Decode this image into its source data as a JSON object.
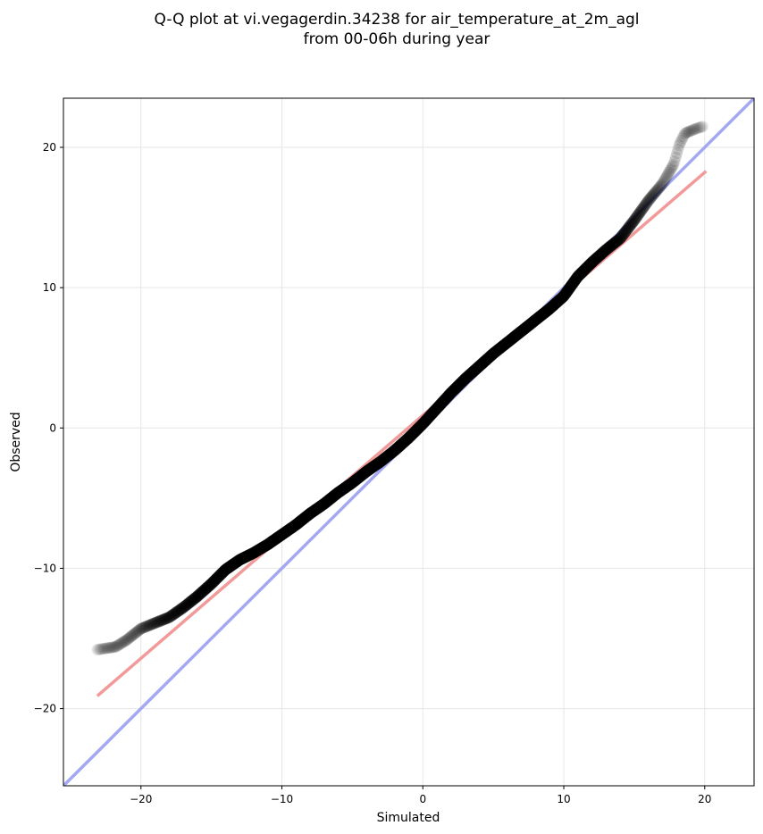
{
  "chart_data": {
    "type": "scatter",
    "title_line1": "Q-Q plot at vi.vegagerdin.34238 for air_temperature_at_2m_agl",
    "title_line2": "from 00-06h during year",
    "xlabel": "Simulated",
    "ylabel": "Observed",
    "xlim": [
      -25.5,
      23.5
    ],
    "ylim": [
      -25.5,
      23.5
    ],
    "xticks": [
      -20,
      -10,
      0,
      10,
      20
    ],
    "yticks": [
      -20,
      -10,
      0,
      10,
      20
    ],
    "xtick_labels": [
      "−20",
      "−10",
      "0",
      "10",
      "20"
    ],
    "ytick_labels": [
      "−20",
      "−10",
      "0",
      "10",
      "20"
    ],
    "grid": true,
    "quantile_curve": [
      [
        -23.1,
        -15.8
      ],
      [
        -21.8,
        -15.6
      ],
      [
        -21.0,
        -15.1
      ],
      [
        -20.0,
        -14.3
      ],
      [
        -19.0,
        -13.9
      ],
      [
        -18.0,
        -13.5
      ],
      [
        -17.0,
        -12.8
      ],
      [
        -16.0,
        -12.0
      ],
      [
        -15.0,
        -11.1
      ],
      [
        -14.0,
        -10.1
      ],
      [
        -13.0,
        -9.4
      ],
      [
        -12.0,
        -8.9
      ],
      [
        -11.0,
        -8.3
      ],
      [
        -10.0,
        -7.6
      ],
      [
        -9.0,
        -6.9
      ],
      [
        -8.0,
        -6.1
      ],
      [
        -7.0,
        -5.4
      ],
      [
        -6.0,
        -4.6
      ],
      [
        -5.0,
        -3.9
      ],
      [
        -4.0,
        -3.1
      ],
      [
        -3.0,
        -2.4
      ],
      [
        -2.0,
        -1.6
      ],
      [
        -1.0,
        -0.7
      ],
      [
        0.0,
        0.3
      ],
      [
        1.0,
        1.4
      ],
      [
        2.0,
        2.5
      ],
      [
        3.0,
        3.5
      ],
      [
        4.0,
        4.4
      ],
      [
        5.0,
        5.3
      ],
      [
        6.0,
        6.1
      ],
      [
        7.0,
        6.9
      ],
      [
        8.0,
        7.7
      ],
      [
        9.0,
        8.5
      ],
      [
        10.0,
        9.4
      ],
      [
        11.0,
        10.8
      ],
      [
        12.0,
        11.8
      ],
      [
        13.0,
        12.7
      ],
      [
        14.0,
        13.5
      ],
      [
        15.0,
        14.8
      ],
      [
        16.0,
        16.2
      ],
      [
        17.0,
        17.4
      ],
      [
        17.8,
        18.8
      ],
      [
        18.2,
        20.2
      ],
      [
        18.6,
        21.0
      ],
      [
        19.3,
        21.3
      ],
      [
        19.9,
        21.5
      ]
    ],
    "fit_line": {
      "color": "#f29a9a",
      "points": [
        [
          -23.1,
          -19.1
        ],
        [
          20.1,
          18.3
        ]
      ]
    },
    "identity_line": {
      "color": "#a3a8f2",
      "points": [
        [
          -25.5,
          -25.5
        ],
        [
          23.5,
          23.5
        ]
      ]
    },
    "point_color": "#000000"
  }
}
